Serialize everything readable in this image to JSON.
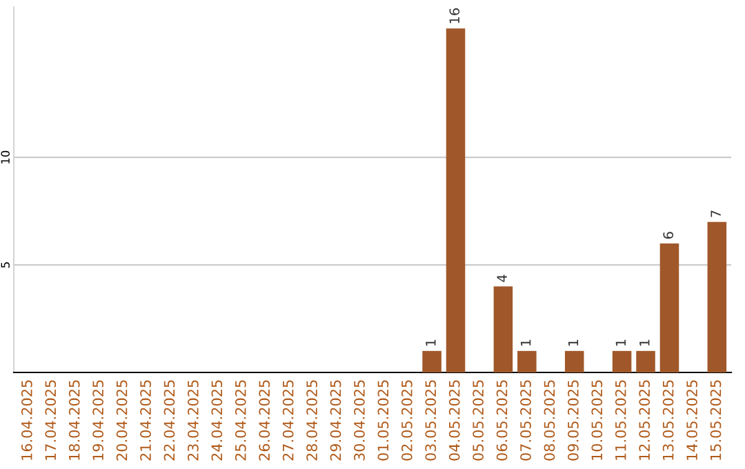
{
  "chart_data": {
    "type": "bar",
    "categories": [
      "16.04.2025",
      "17.04.2025",
      "18.04.2025",
      "19.04.2025",
      "20.04.2025",
      "21.04.2025",
      "22.04.2025",
      "23.04.2025",
      "24.04.2025",
      "25.04.2025",
      "26.04.2025",
      "27.04.2025",
      "28.04.2025",
      "29.04.2025",
      "30.04.2025",
      "01.05.2025",
      "02.05.2025",
      "03.05.2025",
      "04.05.2025",
      "05.05.2025",
      "06.05.2025",
      "07.05.2025",
      "08.05.2025",
      "09.05.2025",
      "10.05.2025",
      "11.05.2025",
      "12.05.2025",
      "13.05.2025",
      "14.05.2025",
      "15.05.2025"
    ],
    "values": [
      0,
      0,
      0,
      0,
      0,
      0,
      0,
      0,
      0,
      0,
      0,
      0,
      0,
      0,
      0,
      0,
      0,
      1,
      16,
      0,
      4,
      1,
      0,
      1,
      0,
      1,
      1,
      6,
      0,
      7
    ],
    "value_labels": [
      null,
      null,
      null,
      null,
      null,
      null,
      null,
      null,
      null,
      null,
      null,
      null,
      null,
      null,
      null,
      null,
      null,
      "1",
      "16",
      null,
      "4",
      "1",
      null,
      "1",
      null,
      "1",
      "1",
      "6",
      null,
      "7"
    ],
    "color": "#a0582a",
    "ylim": [
      0,
      17
    ],
    "yticks": [
      5,
      10
    ],
    "grid": "y",
    "legend": false
  }
}
